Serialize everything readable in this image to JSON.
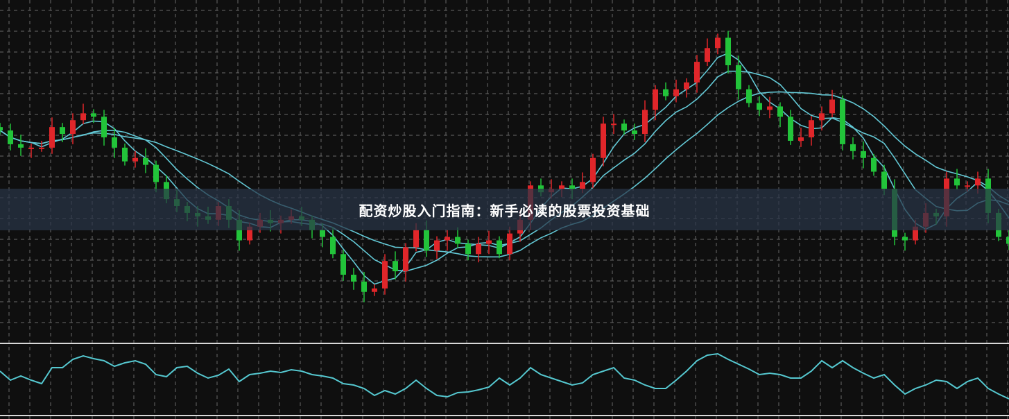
{
  "title": "配资炒股入门指南：新手必读的股票投资基础",
  "colors": {
    "background": "#0f0f0f",
    "grid": "#6a6a6a",
    "up": "#e0262a",
    "down": "#22c43a",
    "ma": "#63c9d6",
    "oscillator": "#55c8d0",
    "separator": "#d8d8d8"
  },
  "chart_data": {
    "type": "candlestick",
    "title": "",
    "xlabel": "",
    "ylabel": "",
    "grid": true,
    "ylim": [
      0,
      500
    ],
    "close": [
      310,
      290,
      285,
      285,
      285,
      315,
      305,
      325,
      335,
      330,
      300,
      285,
      265,
      270,
      260,
      235,
      210,
      200,
      190,
      185,
      180,
      200,
      180,
      150,
      170,
      180,
      175,
      180,
      185,
      180,
      165,
      155,
      130,
      100,
      90,
      75,
      80,
      120,
      105,
      140,
      165,
      135,
      150,
      155,
      145,
      130,
      145,
      150,
      130,
      160,
      180,
      230,
      220,
      225,
      230,
      225,
      235,
      270,
      320,
      320,
      310,
      305,
      340,
      370,
      360,
      370,
      380,
      410,
      430,
      445,
      405,
      370,
      350,
      340,
      345,
      330,
      295,
      300,
      325,
      335,
      355,
      290,
      280,
      270,
      250,
      225,
      155,
      150,
      170,
      190,
      185,
      240,
      230,
      230,
      240,
      190,
      155,
      145
    ],
    "oscillator": {
      "ylim": [
        20,
        100
      ],
      "values": [
        65,
        52,
        58,
        52,
        47,
        70,
        70,
        82,
        87,
        83,
        80,
        72,
        77,
        80,
        75,
        60,
        57,
        70,
        72,
        62,
        55,
        59,
        68,
        50,
        60,
        62,
        65,
        63,
        67,
        65,
        60,
        58,
        55,
        47,
        45,
        40,
        30,
        37,
        32,
        40,
        52,
        40,
        30,
        28,
        34,
        35,
        38,
        42,
        55,
        45,
        55,
        70,
        60,
        55,
        50,
        45,
        48,
        60,
        65,
        70,
        55,
        52,
        45,
        40,
        40,
        52,
        65,
        80,
        88,
        90,
        82,
        75,
        68,
        60,
        62,
        60,
        55,
        55,
        65,
        80,
        70,
        80,
        70,
        62,
        55,
        60,
        45,
        32,
        40,
        45,
        52,
        50,
        40,
        50,
        55,
        40,
        32,
        25
      ]
    }
  }
}
